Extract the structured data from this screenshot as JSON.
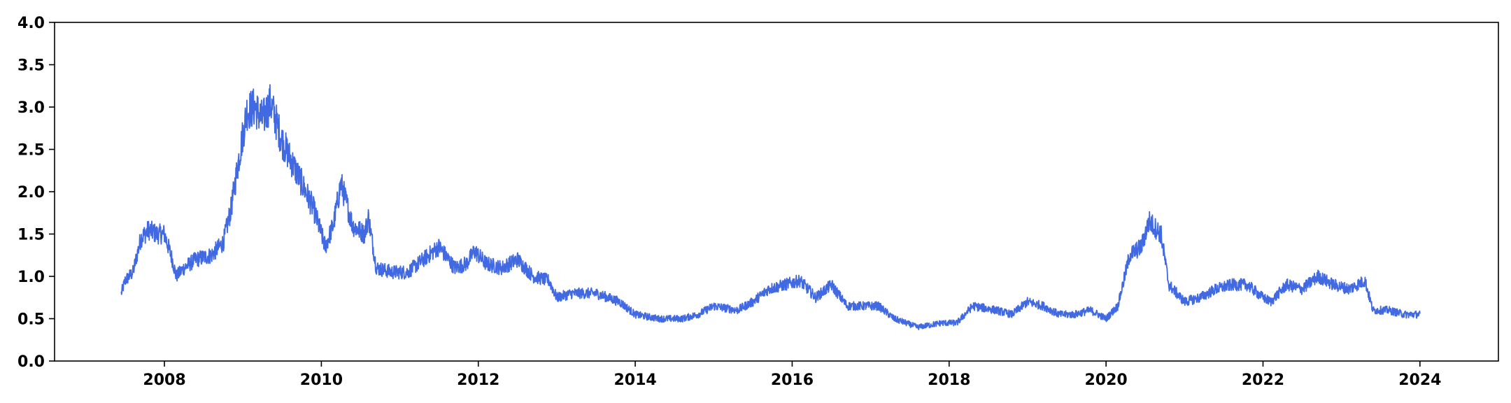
{
  "chart_data": {
    "type": "line",
    "title": "",
    "xlabel": "",
    "ylabel": "",
    "xlim": [
      2006.6,
      2025.0
    ],
    "ylim": [
      0.0,
      4.0
    ],
    "xticks": [
      2008,
      2010,
      2012,
      2014,
      2016,
      2018,
      2020,
      2022,
      2024
    ],
    "xtick_labels": [
      "2008",
      "2010",
      "2012",
      "2014",
      "2016",
      "2018",
      "2020",
      "2022",
      "2024"
    ],
    "yticks": [
      0.0,
      0.5,
      1.0,
      1.5,
      2.0,
      2.5,
      3.0,
      3.5,
      4.0
    ],
    "ytick_labels": [
      "0.0",
      "0.5",
      "1.0",
      "1.5",
      "2.0",
      "2.5",
      "3.0",
      "3.5",
      "4.0"
    ],
    "grid": false,
    "line_color": "#4169e1",
    "series": [
      {
        "x": [
          2007.45,
          2007.5,
          2007.6,
          2007.7,
          2007.8,
          2007.9,
          2008.0,
          2008.1,
          2008.15,
          2008.25,
          2008.4,
          2008.6,
          2008.75,
          2008.85,
          2008.95,
          2009.05,
          2009.15,
          2009.25,
          2009.35,
          2009.5,
          2009.6,
          2009.75,
          2009.9,
          2010.0,
          2010.05,
          2010.15,
          2010.25,
          2010.4,
          2010.55,
          2010.6,
          2010.7,
          2010.9,
          2011.1,
          2011.3,
          2011.5,
          2011.7,
          2011.85,
          2011.95,
          2012.1,
          2012.3,
          2012.5,
          2012.7,
          2012.9,
          2013.0,
          2013.2,
          2013.5,
          2013.8,
          2014.0,
          2014.3,
          2014.6,
          2014.8,
          2015.0,
          2015.3,
          2015.5,
          2015.7,
          2015.9,
          2016.1,
          2016.3,
          2016.5,
          2016.7,
          2016.9,
          2017.1,
          2017.3,
          2017.6,
          2017.9,
          2018.1,
          2018.3,
          2018.6,
          2018.8,
          2019.0,
          2019.2,
          2019.4,
          2019.6,
          2019.8,
          2020.0,
          2020.15,
          2020.3,
          2020.45,
          2020.55,
          2020.7,
          2020.8,
          2021.0,
          2021.2,
          2021.4,
          2021.6,
          2021.8,
          2022.0,
          2022.1,
          2022.3,
          2022.5,
          2022.7,
          2022.9,
          2023.1,
          2023.3,
          2023.4,
          2023.6,
          2023.8,
          2024.0
        ],
        "y": [
          0.8,
          0.95,
          1.05,
          1.45,
          1.55,
          1.5,
          1.5,
          1.2,
          1.0,
          1.1,
          1.2,
          1.25,
          1.4,
          1.8,
          2.4,
          2.95,
          3.0,
          2.85,
          3.05,
          2.6,
          2.4,
          2.1,
          1.8,
          1.5,
          1.35,
          1.6,
          2.1,
          1.6,
          1.5,
          1.7,
          1.1,
          1.05,
          1.05,
          1.2,
          1.35,
          1.1,
          1.15,
          1.3,
          1.15,
          1.1,
          1.2,
          1.0,
          0.95,
          0.75,
          0.8,
          0.8,
          0.7,
          0.55,
          0.5,
          0.5,
          0.55,
          0.65,
          0.6,
          0.7,
          0.85,
          0.9,
          0.95,
          0.75,
          0.9,
          0.65,
          0.65,
          0.65,
          0.5,
          0.4,
          0.45,
          0.45,
          0.65,
          0.6,
          0.55,
          0.7,
          0.65,
          0.55,
          0.55,
          0.6,
          0.5,
          0.65,
          1.25,
          1.35,
          1.65,
          1.5,
          0.9,
          0.7,
          0.75,
          0.85,
          0.9,
          0.9,
          0.75,
          0.7,
          0.9,
          0.85,
          1.0,
          0.9,
          0.85,
          0.95,
          0.6,
          0.6,
          0.55,
          0.55
        ]
      }
    ]
  }
}
